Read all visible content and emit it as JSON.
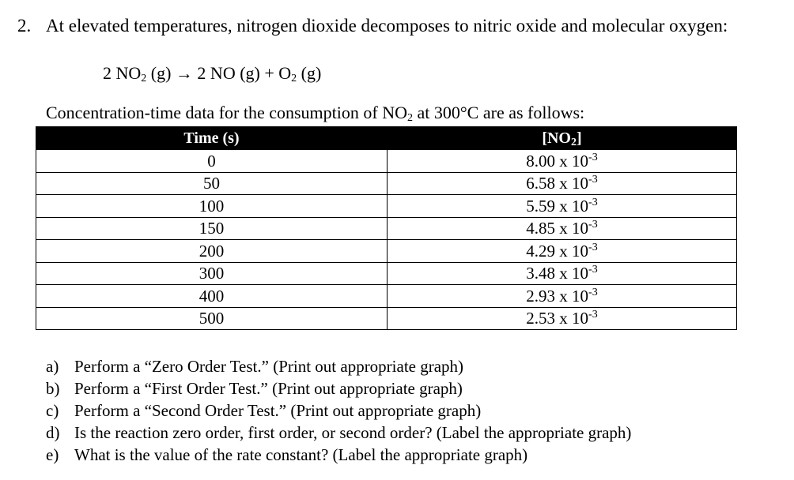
{
  "question": {
    "number": "2.",
    "text": "At elevated temperatures, nitrogen dioxide decomposes to nitric oxide and molecular oxygen:"
  },
  "equation": {
    "p1": "2 NO",
    "s1": "2",
    "p2": " (g) → 2 NO (g) + O",
    "s2": "2",
    "p3": " (g)"
  },
  "intro": {
    "p1": "Concentration-time data for the consumption of NO",
    "s1": "2",
    "p2": " at 300°C are as follows:"
  },
  "table": {
    "headers": {
      "time": "Time (s)",
      "conc_p1": "[NO",
      "conc_s": "2",
      "conc_p2": "]"
    },
    "rows": [
      {
        "time": "0",
        "mantissa": "8.00 x 10",
        "exp": "-3"
      },
      {
        "time": "50",
        "mantissa": "6.58 x 10",
        "exp": "-3"
      },
      {
        "time": "100",
        "mantissa": "5.59 x 10",
        "exp": "-3"
      },
      {
        "time": "150",
        "mantissa": "4.85 x 10",
        "exp": "-3"
      },
      {
        "time": "200",
        "mantissa": "4.29 x 10",
        "exp": "-3"
      },
      {
        "time": "300",
        "mantissa": "3.48 x 10",
        "exp": "-3"
      },
      {
        "time": "400",
        "mantissa": "2.93 x 10",
        "exp": "-3"
      },
      {
        "time": "500",
        "mantissa": "2.53 x 10",
        "exp": "-3"
      }
    ]
  },
  "items": [
    {
      "label": "a)",
      "text": "Perform a “Zero Order Test.” (Print out appropriate graph)"
    },
    {
      "label": "b)",
      "text": "Perform a “First Order Test.” (Print out appropriate graph)"
    },
    {
      "label": "c)",
      "text": "Perform a “Second Order Test.” (Print out appropriate graph)"
    },
    {
      "label": "d)",
      "text": "Is the reaction zero order, first order, or second order? (Label the appropriate graph)"
    },
    {
      "label": "e)",
      "text": "What is the value of the rate constant? (Label the appropriate graph)"
    }
  ]
}
